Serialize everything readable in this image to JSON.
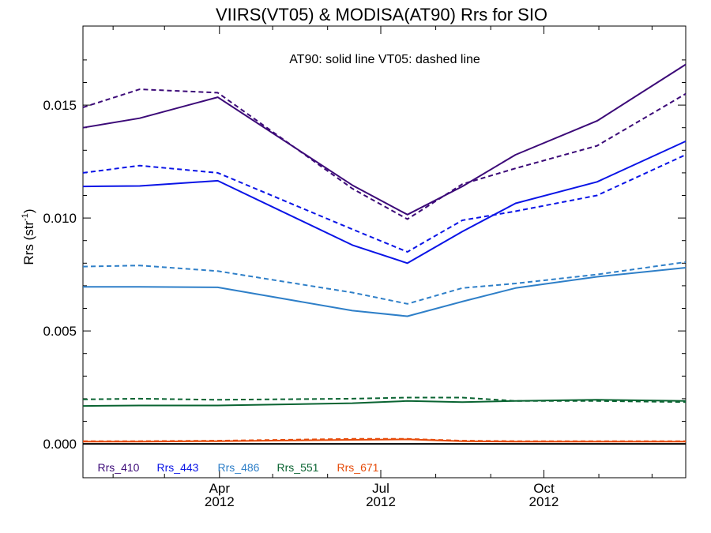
{
  "chart_data": {
    "type": "line",
    "title": "VIIRS(VT05) & MODISA(AT90)  Rrs for SIO",
    "annotation": "AT90: solid line   VT05: dashed line",
    "ylabel": "Rrs (str",
    "ylabel_sup": "-1",
    "ylabel_close": ")",
    "ylim": [
      -0.0015,
      0.0185
    ],
    "yticks": [
      0.0,
      0.005,
      0.01,
      0.015
    ],
    "ytick_labels": [
      "0.000",
      "0.005",
      "0.010",
      "0.015"
    ],
    "xlim": [
      "2012-01-15",
      "2012-12-20"
    ],
    "xticks": [
      {
        "date": "2012-04-01",
        "month": "Apr",
        "year": "2012"
      },
      {
        "date": "2012-07-01",
        "month": "Jul",
        "year": "2012"
      },
      {
        "date": "2012-10-01",
        "month": "Oct",
        "year": "2012"
      }
    ],
    "x_minor_ticks": [
      "2012-02-01",
      "2012-03-01",
      "2012-05-01",
      "2012-06-01",
      "2012-08-01",
      "2012-09-01",
      "2012-11-01",
      "2012-12-01"
    ],
    "zero_line": 0.0,
    "x": [
      "2012-01-15",
      "2012-02-16",
      "2012-03-31",
      "2012-06-15",
      "2012-07-16",
      "2012-08-16",
      "2012-09-15",
      "2012-10-31",
      "2012-12-20"
    ],
    "series": [
      {
        "name": "Rrs_410",
        "color": "#3c0a78",
        "solid": [
          0.014,
          0.01442,
          0.01535,
          0.01145,
          0.01015,
          0.0114,
          0.0128,
          0.0143,
          0.0168
        ],
        "dashed": [
          0.0149,
          0.0157,
          0.01555,
          0.0113,
          0.00995,
          0.0115,
          0.0122,
          0.0132,
          0.0155
        ]
      },
      {
        "name": "Rrs_443",
        "color": "#0a14e6",
        "solid": [
          0.0114,
          0.01142,
          0.01165,
          0.0088,
          0.008,
          0.0094,
          0.01065,
          0.0116,
          0.0134
        ]
      },
      {
        "name": "Rrs_443_dashed",
        "color": "#0a14e6",
        "dashed": [
          0.012,
          0.01232,
          0.012,
          0.0095,
          0.0085,
          0.0099,
          0.0103,
          0.011,
          0.0128
        ]
      },
      {
        "name": "Rrs_486",
        "color": "#2e7fc8",
        "solid": [
          0.00695,
          0.00695,
          0.00693,
          0.0059,
          0.00565,
          0.0063,
          0.0069,
          0.0074,
          0.0078
        ],
        "dashed": [
          0.00785,
          0.0079,
          0.00765,
          0.0067,
          0.0062,
          0.0069,
          0.0071,
          0.0075,
          0.00805
        ]
      },
      {
        "name": "Rrs_551",
        "color": "#0a6432",
        "solid": [
          0.00168,
          0.0017,
          0.0017,
          0.0018,
          0.0019,
          0.00185,
          0.0019,
          0.00195,
          0.0019
        ],
        "dashed": [
          0.00197,
          0.002,
          0.00195,
          0.002,
          0.00205,
          0.00205,
          0.0019,
          0.0019,
          0.00185
        ]
      },
      {
        "name": "Rrs_671",
        "color": "#e64b0a",
        "solid": [
          0.0001,
          0.0001,
          0.00012,
          0.00018,
          0.0002,
          0.00012,
          0.0001,
          0.0001,
          0.0001
        ],
        "dashed": [
          0.00012,
          0.00012,
          0.00014,
          0.00022,
          0.00022,
          0.00014,
          0.00012,
          0.00012,
          0.00012
        ]
      }
    ],
    "legend": [
      {
        "label": "Rrs_410",
        "color": "#3c0a78"
      },
      {
        "label": "Rrs_443",
        "color": "#0a14e6"
      },
      {
        "label": "Rrs_486",
        "color": "#2e7fc8"
      },
      {
        "label": "Rrs_551",
        "color": "#0a6432"
      },
      {
        "label": "Rrs_671",
        "color": "#e64b0a"
      }
    ],
    "legend_position": "bottom-left",
    "grid": false
  }
}
